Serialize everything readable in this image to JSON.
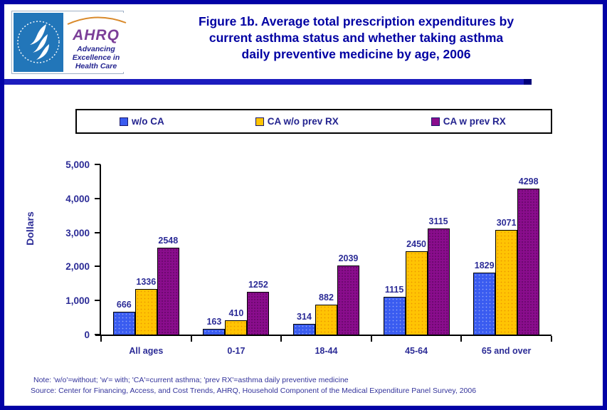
{
  "header": {
    "title_line1": "Figure 1b. Average total prescription expenditures by",
    "title_line2": "current asthma status and whether taking asthma",
    "title_line3": "daily preventive medicine by age, 2006",
    "title_color": "#0101A3",
    "logo": {
      "hhs_seal_name": "U.S. Department of Health & Human Services seal",
      "ahrq_acronym": "AHRQ",
      "ahrq_tagline_line1": "Advancing",
      "ahrq_tagline_line2": "Excellence in",
      "ahrq_tagline_line3": "Health Care"
    }
  },
  "legend": {
    "items": [
      {
        "label": "w/o CA",
        "color": "#3A5CF0"
      },
      {
        "label": "CA w/o prev RX",
        "color": "#FFC403"
      },
      {
        "label": "CA w prev RX",
        "color": "#8A0D8D"
      }
    ]
  },
  "chart_data": {
    "type": "bar",
    "title": "Figure 1b. Average total prescription expenditures by current asthma status and whether taking asthma daily preventive medicine by age, 2006",
    "categories": [
      "All ages",
      "0-17",
      "18-44",
      "45-64",
      "65 and over"
    ],
    "series": [
      {
        "name": "w/o CA",
        "color": "#3A5CF0",
        "values": [
          666,
          163,
          314,
          1115,
          1829
        ]
      },
      {
        "name": "CA w/o prev RX",
        "color": "#FFC403",
        "values": [
          1336,
          410,
          882,
          2450,
          3071
        ]
      },
      {
        "name": "CA w prev RX",
        "color": "#8A0D8D",
        "values": [
          2548,
          1252,
          2039,
          3115,
          4298
        ]
      }
    ],
    "xlabel": "",
    "ylabel": "Dollars",
    "ylim": [
      0,
      5000
    ],
    "yticks": [
      0,
      1000,
      2000,
      3000,
      4000,
      5000
    ],
    "ytick_labels": [
      "0",
      "1,000",
      "2,000",
      "3,000",
      "4,000",
      "5,000"
    ],
    "grid": false,
    "legend_position": "top",
    "bar_value_labels": true
  },
  "footnotes": {
    "note": "Note: 'w/o'=without; 'w'= with; 'CA'=current asthma; 'prev RX'=asthma daily preventive medicine",
    "source": "Source: Center for Financing, Access, and Cost Trends, AHRQ, Household Component of the Medical Expenditure Panel Survey, 2006"
  }
}
